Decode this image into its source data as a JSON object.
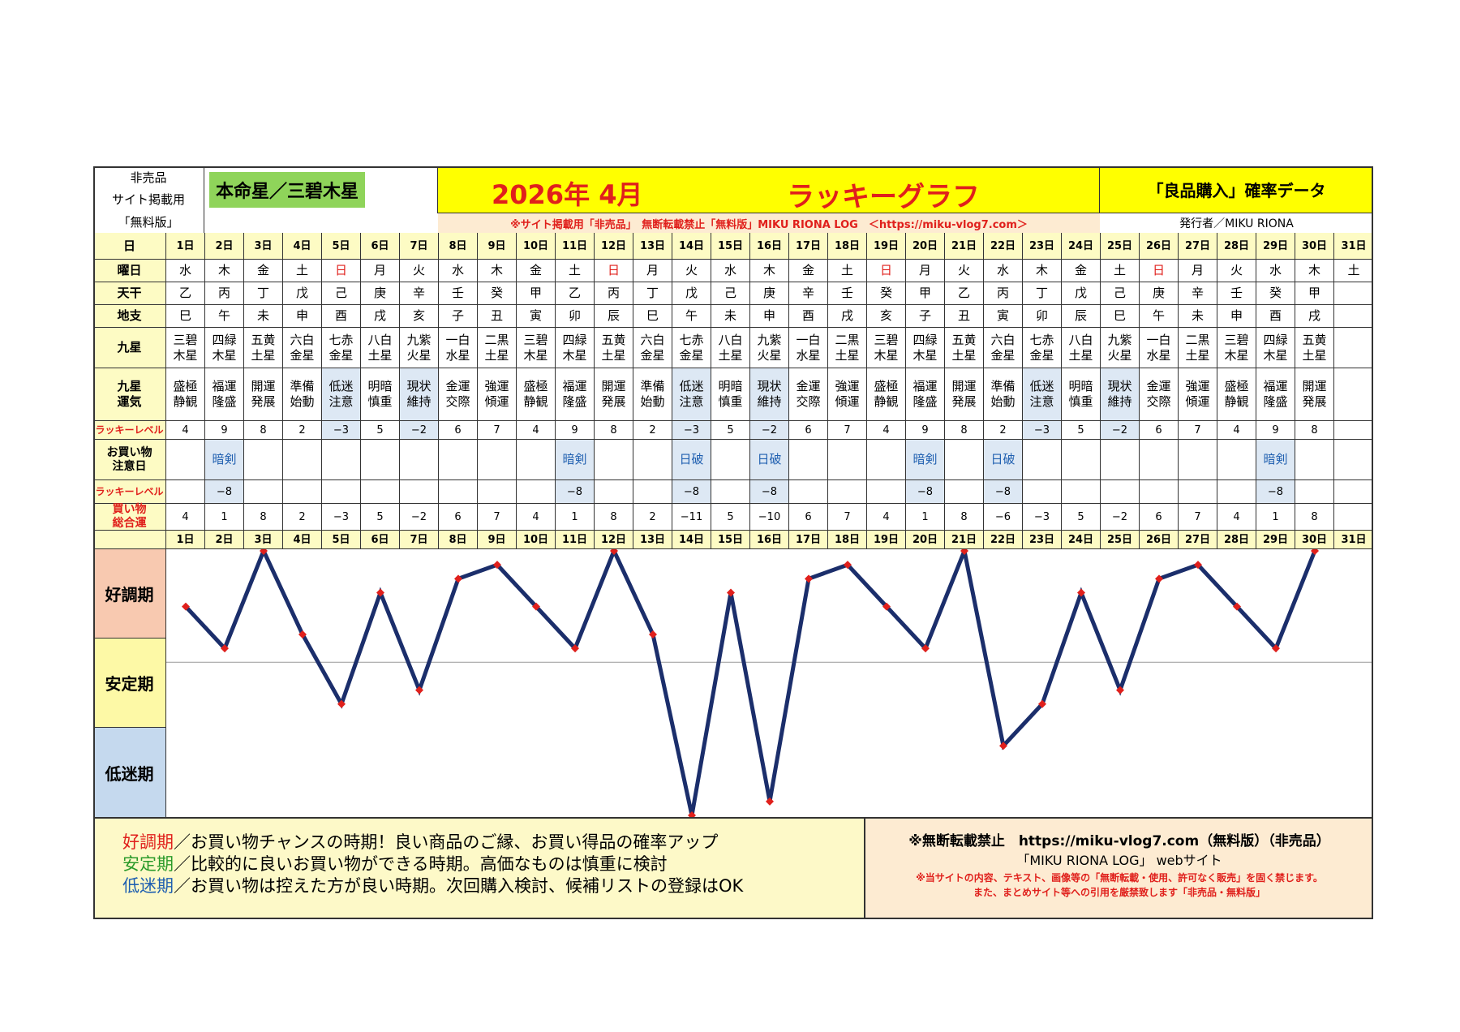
{
  "header": {
    "note_lines": [
      "非売品",
      "サイト掲載用",
      "「無料版」"
    ],
    "honmei": "本命星／三碧木星",
    "year_month": "2026年 4月",
    "title": "ラッキーグラフ",
    "subtitle": "「良品購入」確率データ",
    "notice": "※サイト掲載用「非売品」　無断転載禁止「無料版」MIKU RIONA LOG　＜https://miku-vlog7.com＞",
    "publisher": "発行者／MIKU RIONA"
  },
  "row_labels": {
    "day": "日",
    "weekday": "曜日",
    "tenkan": "天干",
    "chishi": "地支",
    "kyusei": "九星",
    "kyusei_unki": [
      "九星",
      "運気"
    ],
    "lucky_level": "ラッキーレベル",
    "shop_caution": [
      "お買い物",
      "注意日"
    ],
    "shop_level": "ラッキーレベル",
    "shop_total": [
      "買い物",
      "総合運"
    ]
  },
  "days": [
    "1日",
    "2日",
    "3日",
    "4日",
    "5日",
    "6日",
    "7日",
    "8日",
    "9日",
    "10日",
    "11日",
    "12日",
    "13日",
    "14日",
    "15日",
    "16日",
    "17日",
    "18日",
    "19日",
    "20日",
    "21日",
    "22日",
    "23日",
    "24日",
    "25日",
    "26日",
    "27日",
    "28日",
    "29日",
    "30日",
    "31日"
  ],
  "weekdays": [
    "水",
    "木",
    "金",
    "土",
    "日",
    "月",
    "火",
    "水",
    "木",
    "金",
    "土",
    "日",
    "月",
    "火",
    "水",
    "木",
    "金",
    "土",
    "日",
    "月",
    "火",
    "水",
    "木",
    "金",
    "土",
    "日",
    "月",
    "火",
    "水",
    "木",
    "土"
  ],
  "tenkan": [
    "乙",
    "丙",
    "丁",
    "戊",
    "己",
    "庚",
    "辛",
    "壬",
    "癸",
    "甲",
    "乙",
    "丙",
    "丁",
    "戊",
    "己",
    "庚",
    "辛",
    "壬",
    "癸",
    "甲",
    "乙",
    "丙",
    "丁",
    "戊",
    "己",
    "庚",
    "辛",
    "壬",
    "癸",
    "甲",
    ""
  ],
  "chishi": [
    "巳",
    "午",
    "未",
    "申",
    "酉",
    "戌",
    "亥",
    "子",
    "丑",
    "寅",
    "卯",
    "辰",
    "巳",
    "午",
    "未",
    "申",
    "酉",
    "戌",
    "亥",
    "子",
    "丑",
    "寅",
    "卯",
    "辰",
    "巳",
    "午",
    "未",
    "申",
    "酉",
    "戌",
    ""
  ],
  "kyusei": [
    [
      "三碧",
      "木星"
    ],
    [
      "四緑",
      "木星"
    ],
    [
      "五黄",
      "土星"
    ],
    [
      "六白",
      "金星"
    ],
    [
      "七赤",
      "金星"
    ],
    [
      "八白",
      "土星"
    ],
    [
      "九紫",
      "火星"
    ],
    [
      "一白",
      "水星"
    ],
    [
      "二黒",
      "土星"
    ],
    [
      "三碧",
      "木星"
    ],
    [
      "四緑",
      "木星"
    ],
    [
      "五黄",
      "土星"
    ],
    [
      "六白",
      "金星"
    ],
    [
      "七赤",
      "金星"
    ],
    [
      "八白",
      "土星"
    ],
    [
      "九紫",
      "火星"
    ],
    [
      "一白",
      "水星"
    ],
    [
      "二黒",
      "土星"
    ],
    [
      "三碧",
      "木星"
    ],
    [
      "四緑",
      "木星"
    ],
    [
      "五黄",
      "土星"
    ],
    [
      "六白",
      "金星"
    ],
    [
      "七赤",
      "金星"
    ],
    [
      "八白",
      "土星"
    ],
    [
      "九紫",
      "火星"
    ],
    [
      "一白",
      "水星"
    ],
    [
      "二黒",
      "土星"
    ],
    [
      "三碧",
      "木星"
    ],
    [
      "四緑",
      "木星"
    ],
    [
      "五黄",
      "土星"
    ],
    [
      "",
      ""
    ]
  ],
  "unki": [
    [
      "盛極",
      "静観"
    ],
    [
      "福運",
      "隆盛"
    ],
    [
      "開運",
      "発展"
    ],
    [
      "準備",
      "始動"
    ],
    [
      "低迷",
      "注意"
    ],
    [
      "明暗",
      "慎重"
    ],
    [
      "現状",
      "維持"
    ],
    [
      "金運",
      "交際"
    ],
    [
      "強運",
      "傾運"
    ],
    [
      "盛極",
      "静観"
    ],
    [
      "福運",
      "隆盛"
    ],
    [
      "開運",
      "発展"
    ],
    [
      "準備",
      "始動"
    ],
    [
      "低迷",
      "注意"
    ],
    [
      "明暗",
      "慎重"
    ],
    [
      "現状",
      "維持"
    ],
    [
      "金運",
      "交際"
    ],
    [
      "強運",
      "傾運"
    ],
    [
      "盛極",
      "静観"
    ],
    [
      "福運",
      "隆盛"
    ],
    [
      "開運",
      "発展"
    ],
    [
      "準備",
      "始動"
    ],
    [
      "低迷",
      "注意"
    ],
    [
      "明暗",
      "慎重"
    ],
    [
      "現状",
      "維持"
    ],
    [
      "金運",
      "交際"
    ],
    [
      "強運",
      "傾運"
    ],
    [
      "盛極",
      "静観"
    ],
    [
      "福運",
      "隆盛"
    ],
    [
      "開運",
      "発展"
    ],
    [
      "",
      ""
    ]
  ],
  "lucky_level": [
    "4",
    "9",
    "8",
    "2",
    "−3",
    "5",
    "−2",
    "6",
    "7",
    "4",
    "9",
    "8",
    "2",
    "−3",
    "5",
    "−2",
    "6",
    "7",
    "4",
    "9",
    "8",
    "2",
    "−3",
    "5",
    "−2",
    "6",
    "7",
    "4",
    "9",
    "8",
    ""
  ],
  "shop_caution": [
    "",
    "暗剣",
    "",
    "",
    "",
    "",
    "",
    "",
    "",
    "",
    "暗剣",
    "",
    "",
    "日破",
    "",
    "日破",
    "",
    "",
    "",
    "暗剣",
    "",
    "日破",
    "",
    "",
    "",
    "",
    "",
    "",
    "暗剣",
    "",
    ""
  ],
  "shop_level": [
    "",
    "−8",
    "",
    "",
    "",
    "",
    "",
    "",
    "",
    "",
    "−8",
    "",
    "",
    "−8",
    "",
    "−8",
    "",
    "",
    "",
    "−8",
    "",
    "−8",
    "",
    "",
    "",
    "",
    "",
    "",
    "−8",
    "",
    ""
  ],
  "shop_total": [
    "4",
    "1",
    "8",
    "2",
    "−3",
    "5",
    "−2",
    "6",
    "7",
    "4",
    "1",
    "8",
    "2",
    "−11",
    "5",
    "−10",
    "6",
    "7",
    "4",
    "1",
    "8",
    "−6",
    "−3",
    "5",
    "−2",
    "6",
    "7",
    "4",
    "1",
    "8",
    ""
  ],
  "graph_labels": {
    "good": "好調期",
    "stable": "安定期",
    "low": "低迷期"
  },
  "legend": {
    "good_term": "好調期",
    "good_text": "／お買い物チャンスの時期！良い商品のご縁、お買い得品の確率アップ",
    "stable_term": "安定期",
    "stable_text": "／比較的に良いお買い物ができる時期。高価なものは慎重に検討",
    "low_term": "低迷期",
    "low_text": "／お買い物は控えた方が良い時期。次回購入検討、候補リストの登録はOK"
  },
  "footer": {
    "line1": "※無断転載禁止　https://miku-vlog7.com（無料版）（非売品）",
    "line2": "「MIKU RIONA LOG」 webサイト",
    "line3": "※当サイトの内容、テキスト、画像等の「無断転載・使用、許可なく販売」を固く禁じます。",
    "line4": "また、まとめサイト等への引用を厳禁致します「非売品・無料版」"
  },
  "colors": {
    "line": "#1b2e6b",
    "marker": "#e0201c",
    "good_bg": "#f8c9b0",
    "stable_bg": "#fdf9a6",
    "low_bg": "#c5d9ee",
    "title_red": "#e0201c"
  },
  "chart_data": {
    "type": "line",
    "x": [
      "1日",
      "2日",
      "3日",
      "4日",
      "5日",
      "6日",
      "7日",
      "8日",
      "9日",
      "10日",
      "11日",
      "12日",
      "13日",
      "14日",
      "15日",
      "16日",
      "17日",
      "18日",
      "19日",
      "20日",
      "21日",
      "22日",
      "23日",
      "24日",
      "25日",
      "26日",
      "27日",
      "28日",
      "29日",
      "30日"
    ],
    "values": [
      4,
      1,
      8,
      2,
      -3,
      5,
      -2,
      6,
      7,
      4,
      1,
      8,
      2,
      -11,
      5,
      -10,
      6,
      7,
      4,
      1,
      8,
      -6,
      -3,
      5,
      -2,
      6,
      7,
      4,
      1,
      8
    ],
    "ylim": [
      -11,
      8
    ],
    "reference_line": 0,
    "bands": [
      "好調期",
      "安定期",
      "低迷期"
    ],
    "grid": false,
    "marker": "diamond"
  }
}
